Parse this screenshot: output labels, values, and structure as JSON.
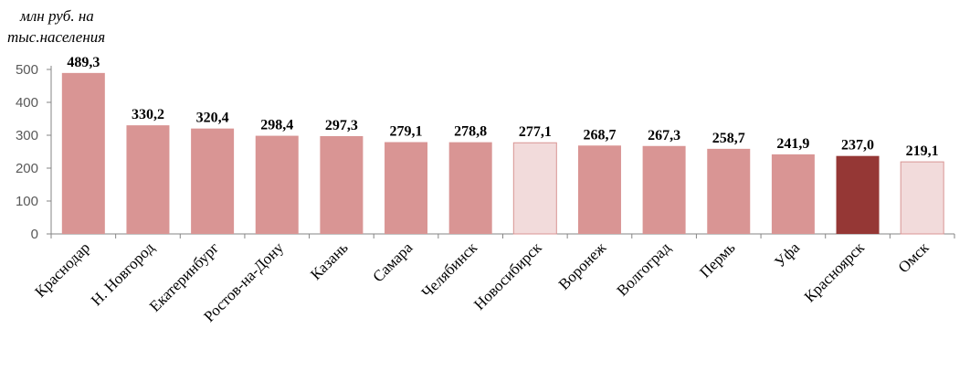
{
  "chart_data": {
    "type": "bar",
    "ylabel_lines": [
      "млн руб. на",
      "тыс.населения"
    ],
    "categories": [
      "Краснодар",
      "Н. Новгород",
      "Екатеринбург",
      "Ростов-на-Дону",
      "Казань",
      "Самара",
      "Челябинск",
      "Новосибирск",
      "Воронеж",
      "Волгоград",
      "Пермь",
      "Уфа",
      "Красноярск",
      "Омск"
    ],
    "values": [
      489.3,
      330.2,
      320.4,
      298.4,
      297.3,
      279.1,
      278.8,
      277.1,
      268.7,
      267.3,
      258.7,
      241.9,
      237.0,
      219.1
    ],
    "data_labels": [
      "489,3",
      "330,2",
      "320,4",
      "298,4",
      "297,3",
      "279,1",
      "278,8",
      "277,1",
      "268,7",
      "267,3",
      "258,7",
      "241,9",
      "237,0",
      "219,1"
    ],
    "bar_colors": [
      "#d99594",
      "#d99594",
      "#d99594",
      "#d99594",
      "#d99594",
      "#d99594",
      "#d99594",
      "#f2dbdb",
      "#d99594",
      "#d99594",
      "#d99594",
      "#d99594",
      "#953735",
      "#f2dbdb"
    ],
    "bar_strokes": [
      "none",
      "none",
      "none",
      "none",
      "none",
      "none",
      "none",
      "#d99594",
      "none",
      "none",
      "none",
      "none",
      "none",
      "#d99594"
    ],
    "ylim": [
      0,
      500
    ],
    "yticks": [
      0,
      100,
      200,
      300,
      400,
      500
    ],
    "ytick_labels": [
      "0",
      "100",
      "200",
      "300",
      "400",
      "500"
    ],
    "grid": false,
    "legend": "none",
    "axis_color": "#868686",
    "tick_label_color": "#595959"
  }
}
